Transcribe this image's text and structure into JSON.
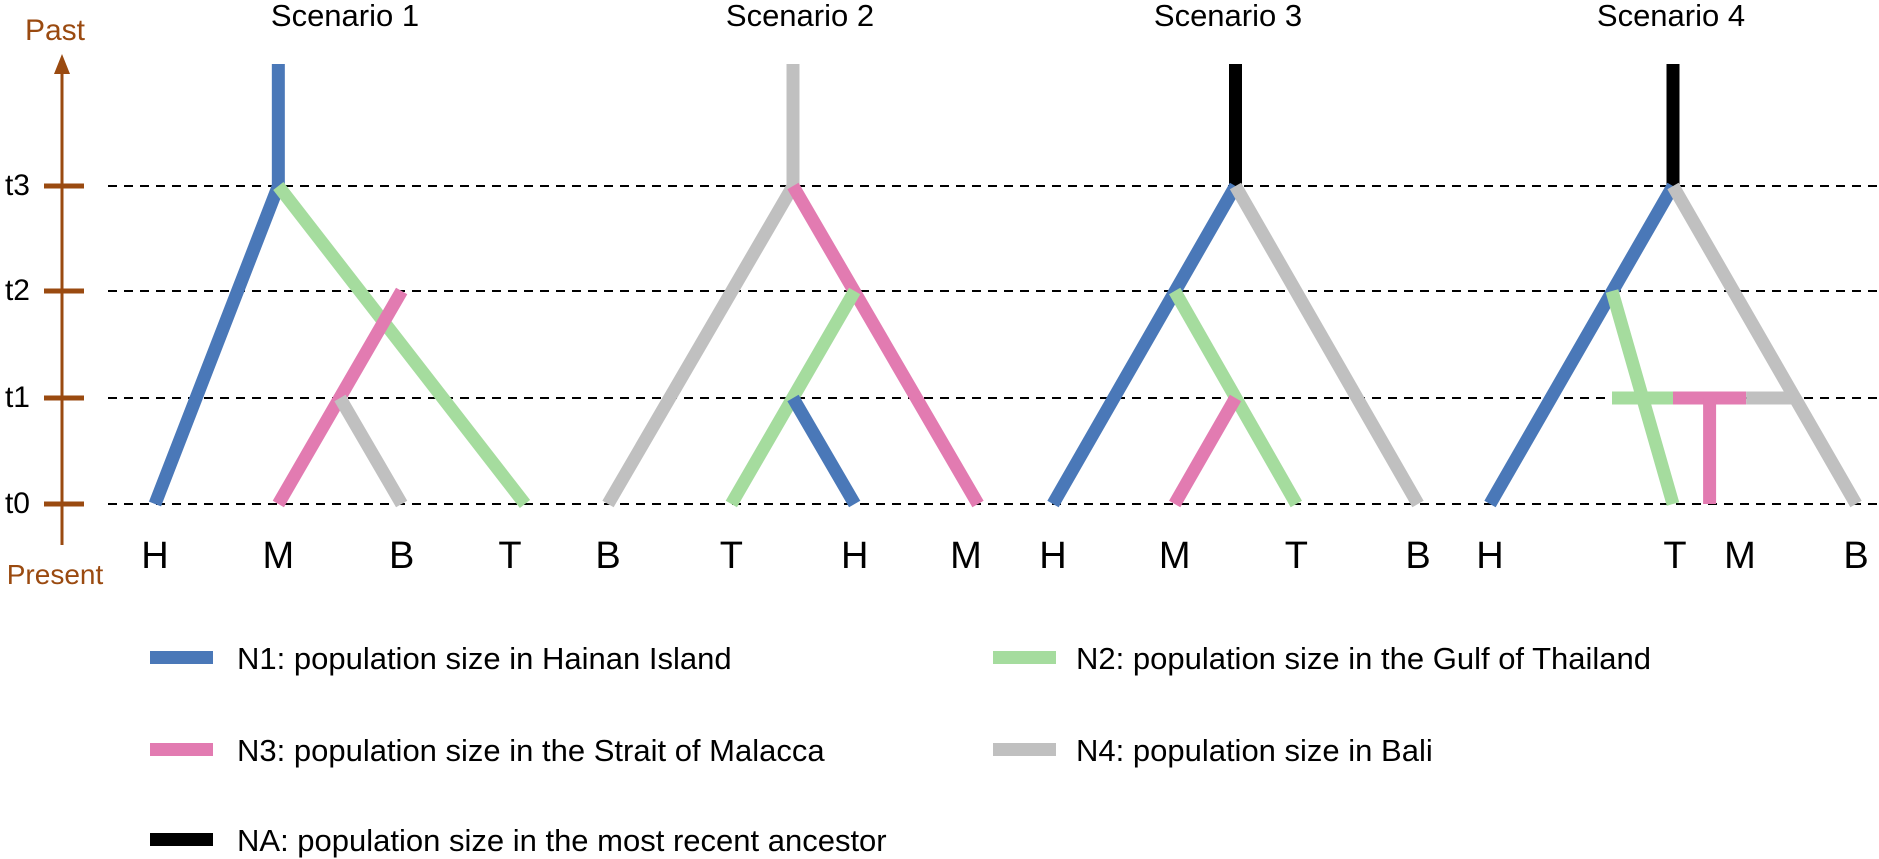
{
  "time_axis": {
    "past_label": "Past",
    "present_label": "Present",
    "ticks": [
      "t0",
      "t1",
      "t2",
      "t3"
    ]
  },
  "scenarios": [
    {
      "title": "Scenario 1",
      "leaves": [
        "H",
        "M",
        "B",
        "T"
      ],
      "root_population": "N1",
      "branches": [
        {
          "population": "N1",
          "from": {
            "time": "t3",
            "x": 1.0
          },
          "to": {
            "time": "t0",
            "x": 0.0
          }
        },
        {
          "population": "N2",
          "from": {
            "time": "t3",
            "x": 1.0
          },
          "to": {
            "time": "t0",
            "x": 3.0
          }
        },
        {
          "population": "N3",
          "from": {
            "time": "t2",
            "x": 2.0
          },
          "to": {
            "time": "t0",
            "x": 1.0
          }
        },
        {
          "population": "N4",
          "from": {
            "time": "t1",
            "x": 1.5
          },
          "to": {
            "time": "t0",
            "x": 2.0
          }
        }
      ]
    },
    {
      "title": "Scenario 2",
      "leaves": [
        "B",
        "T",
        "H",
        "M"
      ],
      "root_population": "N4",
      "branches": [
        {
          "population": "N4",
          "from": {
            "time": "t3",
            "x": 1.5
          },
          "to": {
            "time": "t0",
            "x": 0.0
          }
        },
        {
          "population": "N3",
          "from": {
            "time": "t3",
            "x": 1.5
          },
          "to": {
            "time": "t0",
            "x": 3.0
          }
        },
        {
          "population": "N2",
          "from": {
            "time": "t2",
            "x": 2.0
          },
          "to": {
            "time": "t0",
            "x": 1.0
          }
        },
        {
          "population": "N1",
          "from": {
            "time": "t1",
            "x": 1.5
          },
          "to": {
            "time": "t0",
            "x": 2.0
          }
        }
      ]
    },
    {
      "title": "Scenario 3",
      "leaves": [
        "H",
        "M",
        "T",
        "B"
      ],
      "root_population": "NA",
      "branches": [
        {
          "population": "N1",
          "from": {
            "time": "t3",
            "x": 1.5
          },
          "to": {
            "time": "t0",
            "x": 0.0
          }
        },
        {
          "population": "N4",
          "from": {
            "time": "t3",
            "x": 1.5
          },
          "to": {
            "time": "t0",
            "x": 3.0
          }
        },
        {
          "population": "N2",
          "from": {
            "time": "t2",
            "x": 1.0
          },
          "to": {
            "time": "t0",
            "x": 2.0
          }
        },
        {
          "population": "N3",
          "from": {
            "time": "t1",
            "x": 1.5
          },
          "to": {
            "time": "t0",
            "x": 1.0
          }
        }
      ]
    },
    {
      "title": "Scenario 4",
      "leaves": [
        "H",
        "T",
        "M",
        "B"
      ],
      "root_population": "NA",
      "branches": [
        {
          "population": "N1",
          "from": {
            "time": "t3",
            "x": 1.5
          },
          "to": {
            "time": "t0",
            "x": 0.0
          }
        },
        {
          "population": "N4",
          "from": {
            "time": "t3",
            "x": 1.5
          },
          "to": {
            "time": "t0",
            "x": 3.0
          }
        },
        {
          "population": "N2",
          "from": {
            "time": "t2",
            "x": 1.0
          },
          "to": {
            "time": "t0",
            "x": 1.5
          }
        },
        {
          "population": "N2",
          "from": {
            "time": "t1",
            "x": 1.0
          },
          "to": {
            "time": "t1",
            "x": 1.5
          }
        },
        {
          "population": "N3",
          "from": {
            "time": "t1",
            "x": 1.5
          },
          "to": {
            "time": "t1",
            "x": 2.1
          }
        },
        {
          "population": "N4",
          "from": {
            "time": "t1",
            "x": 2.1
          },
          "to": {
            "time": "t1",
            "x": 2.5
          }
        },
        {
          "population": "N3",
          "from": {
            "time": "t1",
            "x": 1.8
          },
          "to": {
            "time": "t0",
            "x": 1.8
          }
        }
      ]
    }
  ],
  "legend": [
    {
      "key": "N1",
      "label": "N1: population size in Hainan Island",
      "color": "#4a78b8"
    },
    {
      "key": "N2",
      "label": "N2: population size in the Gulf of Thailand",
      "color": "#a5dc9e"
    },
    {
      "key": "N3",
      "label": "N3: population size in the Strait of Malacca",
      "color": "#e27bb1"
    },
    {
      "key": "N4",
      "label": "N4: population size in Bali",
      "color": "#c0c0c0"
    },
    {
      "key": "NA",
      "label": "NA: population size in the most recent ancestor",
      "color": "#000000"
    }
  ],
  "colors": {
    "axis": "#9a4a10",
    "N1": "#4a78b8",
    "N2": "#a5dc9e",
    "N3": "#e27bb1",
    "N4": "#c0c0c0",
    "NA": "#000000"
  }
}
